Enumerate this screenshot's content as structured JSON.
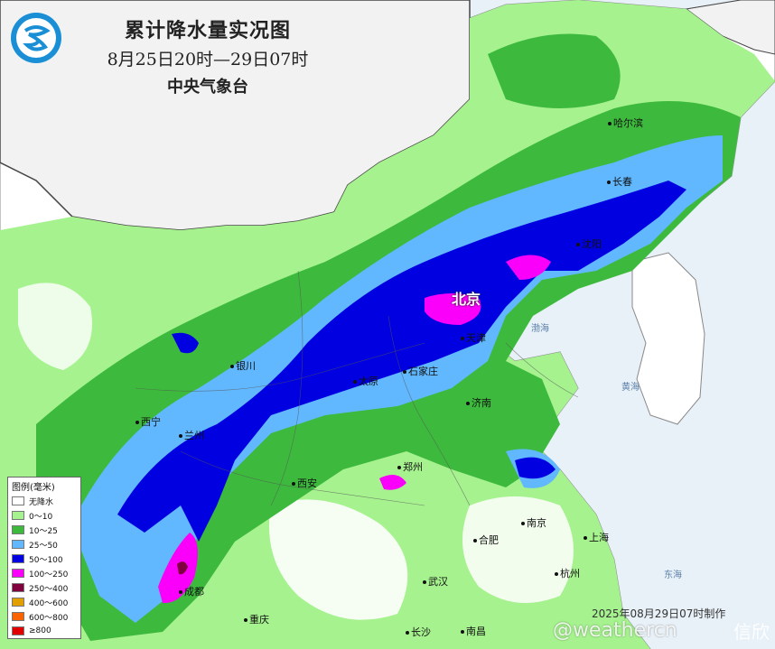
{
  "header": {
    "title": "累计降水量实况图",
    "date_range": "8月25日20时—29日07时",
    "agency": "中央气象台"
  },
  "legend": {
    "title": "图例(毫米)",
    "items": [
      {
        "label": "无降水",
        "color": "#ffffff"
      },
      {
        "label": "0～10",
        "color": "#a6f28f"
      },
      {
        "label": "10～25",
        "color": "#3dba3d"
      },
      {
        "label": "25～50",
        "color": "#61b8ff"
      },
      {
        "label": "50～100",
        "color": "#0000e1"
      },
      {
        "label": "100～250",
        "color": "#fa00fa"
      },
      {
        "label": "250～400",
        "color": "#800040"
      },
      {
        "label": "400～600",
        "color": "#e1a000"
      },
      {
        "label": "600～800",
        "color": "#fa6400"
      },
      {
        "label": "≥800",
        "color": "#e00000"
      }
    ]
  },
  "cities": {
    "beijing": "北京",
    "tianjin": "天津",
    "shijiazhuang": "石家庄",
    "taiyuan": "太原",
    "jinan": "济南",
    "zhengzhou": "郑州",
    "xian": "西安",
    "lanzhou": "兰州",
    "xining": "西宁",
    "yinchuan": "银川",
    "chengdu": "成都",
    "chongqing": "重庆",
    "wuhan": "武汉",
    "hefei": "合肥",
    "nanjing": "南京",
    "shanghai": "上海",
    "hangzhou": "杭州",
    "changsha": "长沙",
    "nanchang": "南昌",
    "shenyang": "沈阳",
    "changchun": "长春",
    "harbin": "哈尔滨"
  },
  "seas": {
    "bohai": "渤海",
    "huanghai": "黄海",
    "donghai": "东海"
  },
  "footer": {
    "made": "2025年08月29日07时制作",
    "watermark": "@weathercn",
    "watermark_small": "信欣"
  },
  "colors": {
    "land_none": "#ffffff",
    "sea": "#e8f1f8",
    "mongolia": "#f2f2f2",
    "border": "#333333"
  }
}
